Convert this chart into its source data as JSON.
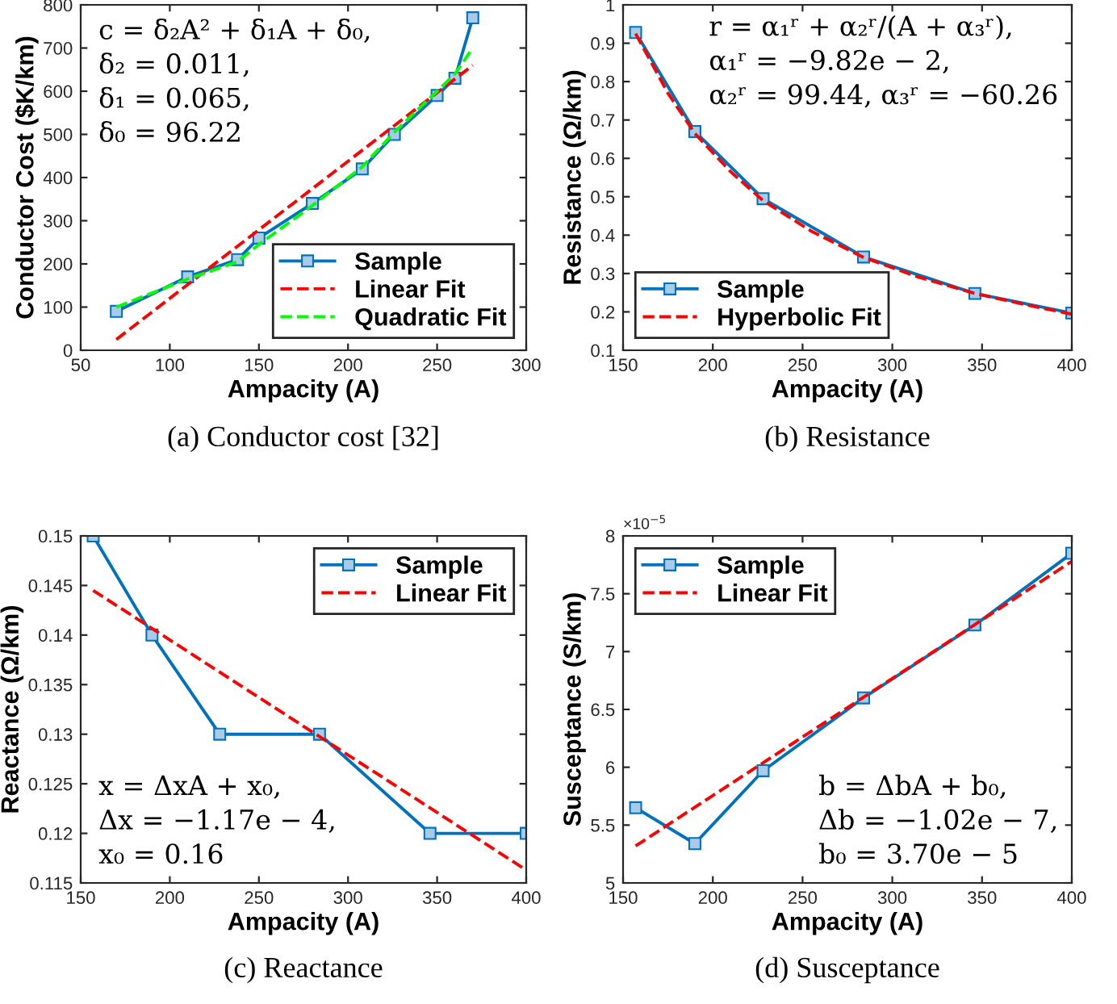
{
  "chart_data": [
    {
      "type": "line",
      "xlabel": "Ampacity (A)",
      "ylabel": "Conductor Cost ($K/km)",
      "xlim": [
        50,
        300
      ],
      "ylim": [
        0,
        800
      ],
      "xticks": [
        50,
        100,
        150,
        200,
        250,
        300
      ],
      "yticks": [
        0,
        100,
        200,
        300,
        400,
        500,
        600,
        700,
        800
      ],
      "legend": "bottom right",
      "grid": false,
      "annotations": [
        "c = δ₂A² + δ₁A + δ₀,\nδ₂ = 0.011,\nδ₁ = 0.065,\nδ₀ = 96.22",
        "(a) Conductor cost [32]"
      ],
      "series": [
        {
          "name": "Sample",
          "color": "#0072bd",
          "marker": "square",
          "line_style": "solid",
          "x": [
            70,
            110,
            138,
            150,
            180,
            208,
            226,
            250,
            260,
            270
          ],
          "values": [
            90,
            170,
            210,
            260,
            340,
            420,
            500,
            590,
            630,
            770
          ]
        },
        {
          "name": "Linear Fit",
          "color": "#ff0000",
          "line_style": "dashed",
          "x": [
            70,
            270
          ],
          "values": [
            25,
            660
          ]
        },
        {
          "name": "Quadratic Fit",
          "color": "#00ff00",
          "line_style": "dashed",
          "x": [
            70,
            110,
            138,
            150,
            180,
            208,
            226,
            250,
            260,
            270
          ],
          "values": [
            100,
            165,
            205,
            245,
            335,
            425,
            505,
            600,
            640,
            700
          ]
        }
      ]
    },
    {
      "type": "line",
      "xlabel": "Ampacity (A)",
      "ylabel": "Resistance (Ω/km)",
      "xlim": [
        150,
        400
      ],
      "ylim": [
        0.1,
        1
      ],
      "xticks": [
        150,
        200,
        250,
        300,
        350,
        400
      ],
      "yticks": [
        0.1,
        0.2,
        0.3,
        0.4,
        0.5,
        0.6,
        0.7,
        0.8,
        0.9,
        1
      ],
      "legend": "bottom left",
      "grid": false,
      "annotations": [
        "r = α₁ʳ + α₂ʳ/(A + α₃ʳ),\nα₁ʳ = −9.82e − 2,\nα₂ʳ = 99.44, α₃ʳ = −60.26",
        "(b) Resistance"
      ],
      "series": [
        {
          "name": "Sample",
          "color": "#0072bd",
          "marker": "square",
          "line_style": "solid",
          "x": [
            157,
            190,
            228,
            284,
            346,
            400
          ],
          "values": [
            0.928,
            0.67,
            0.495,
            0.343,
            0.248,
            0.197
          ]
        },
        {
          "name": "Hyperbolic Fit",
          "color": "#ff0000",
          "line_style": "dashed",
          "x": [
            157,
            175,
            190,
            210,
            228,
            255,
            284,
            315,
            346,
            375,
            400
          ],
          "values": [
            0.925,
            0.77,
            0.665,
            0.565,
            0.49,
            0.41,
            0.342,
            0.29,
            0.248,
            0.218,
            0.194
          ]
        }
      ]
    },
    {
      "type": "line",
      "xlabel": "Ampacity (A)",
      "ylabel": "Reactance (Ω/km)",
      "xlim": [
        150,
        400
      ],
      "ylim": [
        0.115,
        0.15
      ],
      "xticks": [
        150,
        200,
        250,
        300,
        350,
        400
      ],
      "yticks": [
        0.115,
        0.12,
        0.125,
        0.13,
        0.135,
        0.14,
        0.145,
        0.15
      ],
      "legend": "top right",
      "grid": false,
      "annotations": [
        "x = ΔxA + x₀,\nΔx = −1.17e − 4,\nx₀ = 0.16",
        "(c) Reactance"
      ],
      "series": [
        {
          "name": "Sample",
          "color": "#0072bd",
          "marker": "square",
          "line_style": "solid",
          "x": [
            157,
            190,
            228,
            284,
            346,
            400
          ],
          "values": [
            0.15,
            0.14,
            0.13,
            0.13,
            0.12,
            0.12
          ]
        },
        {
          "name": "Linear Fit",
          "color": "#ff0000",
          "line_style": "dashed",
          "x": [
            157,
            400
          ],
          "values": [
            0.1445,
            0.1163
          ]
        }
      ]
    },
    {
      "type": "line",
      "xlabel": "Ampacity (A)",
      "ylabel": "Susceptance (S/km)",
      "xlim": [
        150,
        400
      ],
      "ylim": [
        5,
        8
      ],
      "xticks": [
        150,
        200,
        250,
        300,
        350,
        400
      ],
      "yticks": [
        5,
        5.5,
        6,
        6.5,
        7,
        7.5,
        8
      ],
      "legend": "top left",
      "grid": false,
      "annotations": [
        "b = ΔbA + b₀,\nΔb = −1.02e − 7,\nb₀ = 3.70e − 5",
        "(d) Susceptance",
        "×10$^{−5}$"
      ],
      "series": [
        {
          "name": "Sample",
          "color": "#0072bd",
          "marker": "square",
          "line_style": "solid",
          "x": [
            157,
            190,
            228,
            284,
            346,
            400
          ],
          "values": [
            5.65,
            5.34,
            5.97,
            6.6,
            7.23,
            7.85
          ]
        },
        {
          "name": "Linear Fit",
          "color": "#ff0000",
          "line_style": "dashed",
          "x": [
            157,
            400
          ],
          "values": [
            5.32,
            7.78
          ]
        }
      ]
    }
  ]
}
